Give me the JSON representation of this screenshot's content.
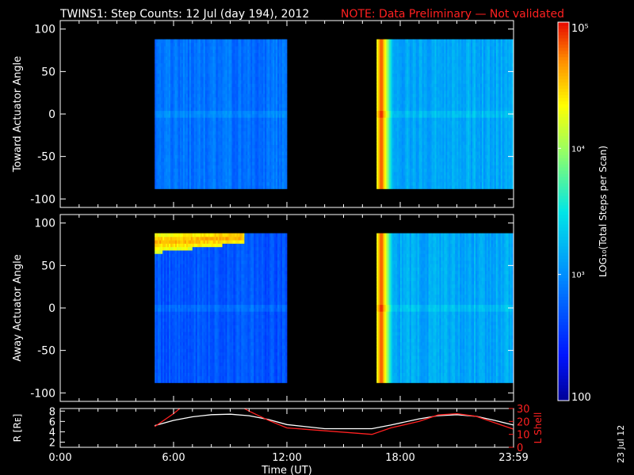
{
  "header": {
    "title": "TWINS1: Step Counts: 12 Jul (day 194), 2012",
    "note": "NOTE: Data Preliminary — Not validated"
  },
  "side_stamp": "23 Jul 12",
  "colors": {
    "background": "#000000",
    "axes": "#ffffff",
    "note": "#ff2020",
    "lshell": "#ff2020",
    "radius": "#ffffff"
  },
  "chart_data": [
    {
      "type": "heatmap",
      "ylabel": "Toward Actuator Angle",
      "ylim": [
        -110,
        110
      ],
      "yticks": [
        -100,
        -50,
        0,
        50,
        100
      ],
      "xlim_hours": [
        0,
        24
      ],
      "scan_range": [
        -88,
        88
      ],
      "blocks": [
        {
          "start": "05:00",
          "end": "12:00",
          "log_level": 2.85,
          "note": "mostly ~10^2.8-10^3 counts"
        },
        {
          "start": "16:45",
          "end": "23:59",
          "log_level": 3.15,
          "edge_peak_log": 4.9,
          "edge_time": "17:00"
        }
      ]
    },
    {
      "type": "heatmap",
      "ylabel": "Away Actuator Angle",
      "ylim": [
        -110,
        110
      ],
      "yticks": [
        -100,
        -50,
        0,
        50,
        100
      ],
      "xlim_hours": [
        0,
        24
      ],
      "scan_range": [
        -88,
        88
      ],
      "blocks": [
        {
          "start": "05:00",
          "end": "12:00",
          "log_level": 2.7,
          "band": {
            "angle_range": [
              65,
              90
            ],
            "start": "05:00",
            "end": "09:45",
            "log_level": 4.6
          }
        },
        {
          "start": "16:45",
          "end": "23:59",
          "log_level": 3.15,
          "edge_peak_log": 4.9,
          "edge_time": "17:00"
        }
      ]
    },
    {
      "type": "line",
      "ylabel": "R [Rᴇ]",
      "ylabel2": "L Shell",
      "xlabel": "Time (UT)",
      "xticklabels": [
        "0:00",
        "6:00",
        "12:00",
        "18:00",
        "23:59"
      ],
      "xticks_hours": [
        0,
        6,
        12,
        18,
        24
      ],
      "ylim": [
        1,
        8.5
      ],
      "yticks": [
        2,
        4,
        6,
        8
      ],
      "ylim2": [
        0,
        30
      ],
      "yticks2": [
        0,
        10,
        20,
        30
      ],
      "series": [
        {
          "axis": "left",
          "x": [
            5.0,
            6.0,
            7.0,
            8.0,
            9.0,
            10.0,
            11.0,
            12.0,
            14.0,
            16.5,
            17.5,
            19.0,
            20.0,
            21.0,
            22.0,
            23.0,
            24.0
          ],
          "y": [
            5.2,
            6.2,
            6.9,
            7.3,
            7.4,
            7.1,
            6.4,
            5.4,
            4.6,
            4.6,
            5.3,
            6.5,
            7.1,
            7.3,
            7.0,
            6.2,
            5.3
          ]
        },
        {
          "axis": "right",
          "x": [
            5.0,
            6.0,
            6.5,
            9.5,
            10.0,
            11.0,
            12.0,
            16.5,
            17.5,
            19.0,
            20.0,
            21.0,
            22.0,
            23.0,
            24.0
          ],
          "y": [
            16,
            26,
            32,
            32,
            28,
            21,
            15,
            10,
            15,
            20,
            25,
            26,
            24,
            19,
            14
          ]
        }
      ]
    }
  ],
  "colorbar": {
    "label": "LOG₁₀(Total Steps per Scan)",
    "ticks": [
      {
        "value": 100,
        "label": "100"
      },
      {
        "value": 1000,
        "label": "10³"
      },
      {
        "value": 10000,
        "label": "10⁴"
      },
      {
        "value": 100000,
        "label": "10⁵"
      }
    ],
    "range_log": [
      2,
      5
    ]
  }
}
